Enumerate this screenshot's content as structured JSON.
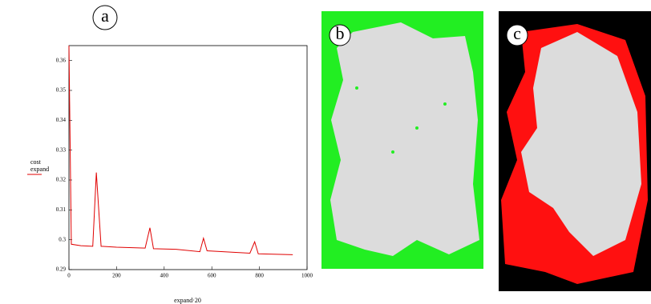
{
  "chart_data": {
    "type": "line",
    "x_label": "expand·20",
    "panels": [
      "a",
      "b",
      "c"
    ],
    "legend_sub": "expand",
    "series": [
      {
        "name": "cost",
        "color": "#e00000",
        "x": [
          0,
          10,
          50,
          100,
          115,
          135,
          200,
          320,
          340,
          355,
          450,
          550,
          565,
          580,
          760,
          780,
          795,
          940
        ],
        "values": [
          0.365,
          0.2985,
          0.298,
          0.2978,
          0.3225,
          0.2978,
          0.2975,
          0.2972,
          0.304,
          0.297,
          0.2968,
          0.296,
          0.3005,
          0.2963,
          0.2955,
          0.2993,
          0.2953,
          0.295
        ]
      }
    ],
    "xlim": [
      0,
      1000
    ],
    "xticks": [
      0,
      200,
      400,
      600,
      800,
      1000
    ],
    "ylim": [
      0.29,
      0.365
    ],
    "yticks": [
      0.29,
      0.3,
      0.31,
      0.32,
      0.33,
      0.34,
      0.35,
      0.36
    ]
  }
}
